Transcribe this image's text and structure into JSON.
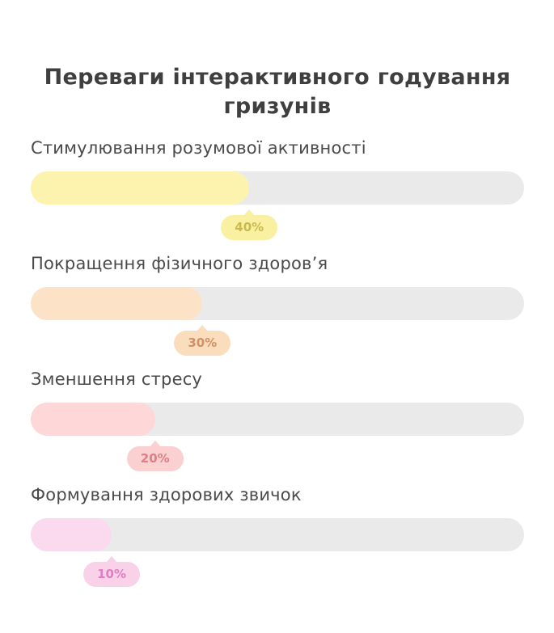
{
  "chart_data": {
    "type": "bar",
    "orientation": "horizontal",
    "title": "Переваги інтерактивного годування гризунів",
    "categories": [
      "Стимулювання розумової активності",
      "Покращення фізичного здоров’я",
      "Зменшення стресу",
      "Формування здорових звичок"
    ],
    "values": [
      40,
      30,
      20,
      10
    ],
    "unit": "%",
    "xlim": [
      0,
      100
    ],
    "grid": false,
    "legend": false,
    "track_color": "#eaeaea",
    "background_color": "#ffffff",
    "title_color": "#3f3f3f",
    "label_color": "#4a4a4a",
    "rows": [
      {
        "label": "Стимулювання розумової активності",
        "value": 40,
        "value_label": "40%",
        "fill_color": "#fcf4ae",
        "bubble_bg": "#faf0a2",
        "bubble_text_color": "#ccb94e",
        "fill_width_pct": 44.3
      },
      {
        "label": "Покращення фізичного здоров’я",
        "value": 30,
        "value_label": "30%",
        "fill_color": "#fce3c7",
        "bubble_bg": "#faddbc",
        "bubble_text_color": "#ce9265",
        "fill_width_pct": 34.8
      },
      {
        "label": "Зменшення стресу",
        "value": 20,
        "value_label": "20%",
        "fill_color": "#fed8d8",
        "bubble_bg": "#fbd0d0",
        "bubble_text_color": "#dc8086",
        "fill_width_pct": 25.2
      },
      {
        "label": "Формування здорових звичок",
        "value": 10,
        "value_label": "10%",
        "fill_color": "#fbd9ee",
        "bubble_bg": "#f9d2ea",
        "bubble_text_color": "#de7fc1",
        "fill_width_pct": 16.4
      }
    ]
  }
}
